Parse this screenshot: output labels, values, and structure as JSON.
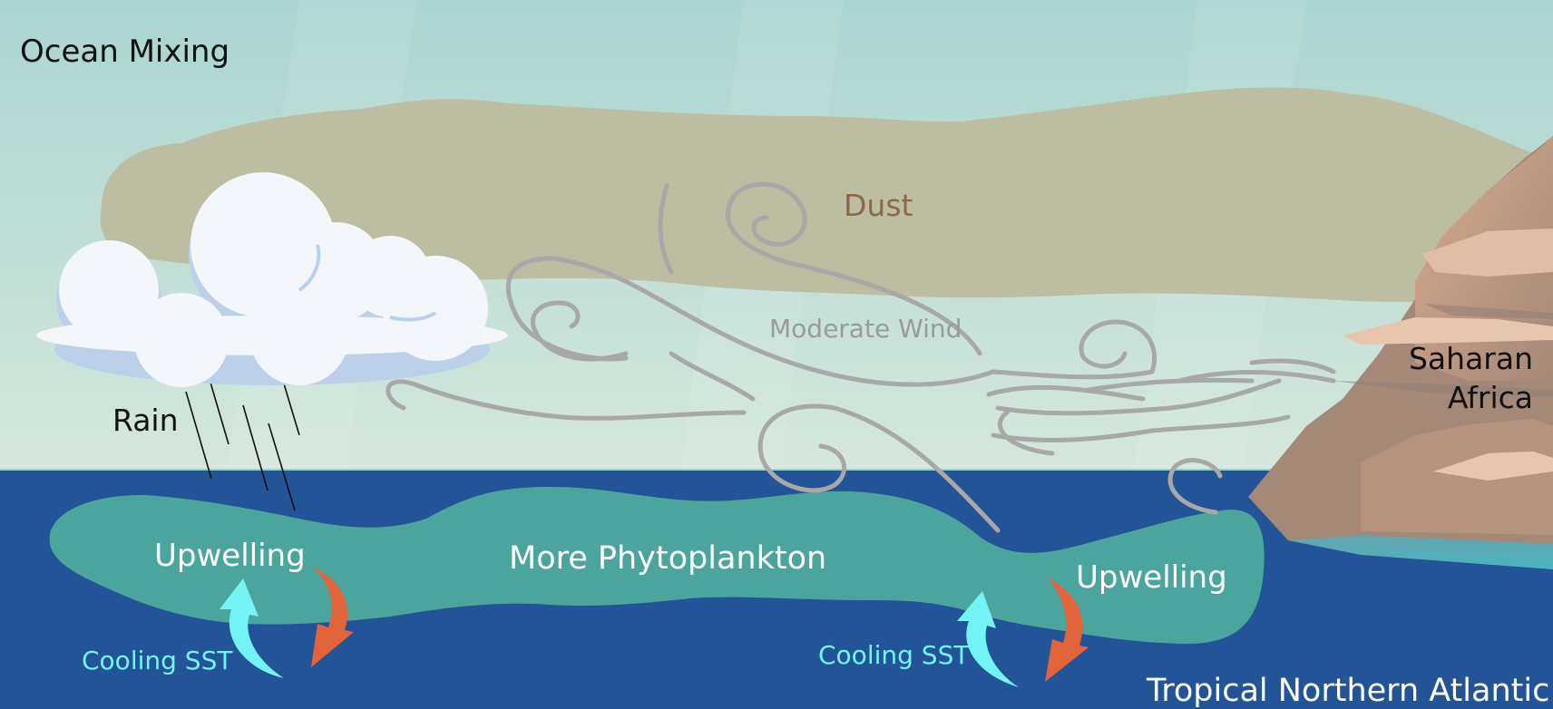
{
  "title": "Ocean Mixing",
  "labels": {
    "dust": "Dust",
    "wind": "Moderate Wind",
    "rain": "Rain",
    "saharan_line1": "Saharan",
    "saharan_line2": "Africa",
    "upwelling_left": "Upwelling",
    "phytoplankton": "More Phytoplankton",
    "upwelling_right": "Upwelling",
    "cooling_left": "Cooling SST",
    "cooling_right": "Cooling SST",
    "ocean": "Tropical Northern Atlantic"
  },
  "colors": {
    "sky_top": "#a9d5d1",
    "sky_bottom": "#d6e7dc",
    "dust": "#bdbda2",
    "ocean": "#225497",
    "phytoplankton": "#4ba59d",
    "wind": "#a8a8a8",
    "cool_arrow": "#74f3f6",
    "warm_arrow": "#e2643a",
    "rock": "#c29c86",
    "cloud": "#f3f6fb",
    "cloud_shade": "#bcd0ea"
  }
}
